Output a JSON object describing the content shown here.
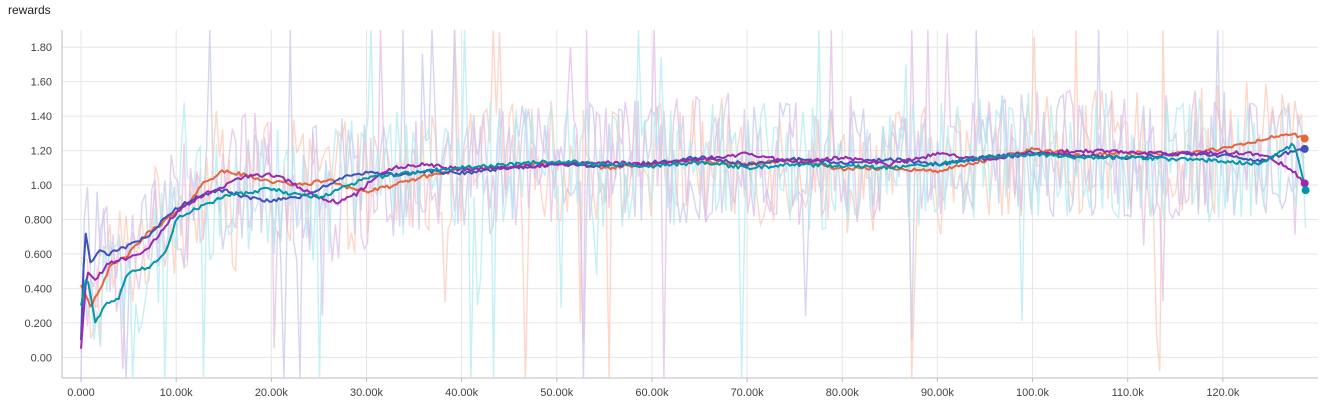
{
  "chart_data": {
    "type": "line",
    "title": "rewards",
    "xlabel": "",
    "ylabel": "",
    "xlim": [
      -2000,
      130000
    ],
    "ylim": [
      -0.12,
      1.9
    ],
    "grid": true,
    "x_ticks": [
      {
        "value": 0,
        "label": "0.000"
      },
      {
        "value": 10000,
        "label": "10.00k"
      },
      {
        "value": 20000,
        "label": "20.00k"
      },
      {
        "value": 30000,
        "label": "30.00k"
      },
      {
        "value": 40000,
        "label": "40.00k"
      },
      {
        "value": 50000,
        "label": "50.00k"
      },
      {
        "value": 60000,
        "label": "60.00k"
      },
      {
        "value": 70000,
        "label": "70.00k"
      },
      {
        "value": 80000,
        "label": "80.00k"
      },
      {
        "value": 90000,
        "label": "90.00k"
      },
      {
        "value": 100000,
        "label": "100.0k"
      },
      {
        "value": 110000,
        "label": "110.0k"
      },
      {
        "value": 120000,
        "label": "120.0k"
      }
    ],
    "y_ticks": [
      {
        "value": 0.0,
        "label": "0.00"
      },
      {
        "value": 0.2,
        "label": "0.200"
      },
      {
        "value": 0.4,
        "label": "0.400"
      },
      {
        "value": 0.6,
        "label": "0.600"
      },
      {
        "value": 0.8,
        "label": "0.800"
      },
      {
        "value": 1.0,
        "label": "1.00"
      },
      {
        "value": 1.2,
        "label": "1.20"
      },
      {
        "value": 1.4,
        "label": "1.40"
      },
      {
        "value": 1.6,
        "label": "1.60"
      },
      {
        "value": 1.8,
        "label": "1.80"
      }
    ],
    "series": [
      {
        "color": "#e8643a",
        "raw_color": "#ffc9b5",
        "x": [
          0,
          1000,
          2000,
          3000,
          5000,
          7000,
          9000,
          11000,
          13000,
          15000,
          17000,
          20000,
          23000,
          26000,
          28000,
          30000,
          33000,
          36000,
          40000,
          45000,
          50000,
          55000,
          60000,
          65000,
          70000,
          75000,
          80000,
          85000,
          90000,
          95000,
          100000,
          105000,
          110000,
          115000,
          120000,
          124000,
          127000,
          128600
        ],
        "values": [
          0.42,
          0.3,
          0.4,
          0.52,
          0.6,
          0.72,
          0.8,
          0.88,
          1.02,
          1.08,
          1.06,
          1.02,
          1.0,
          1.03,
          0.99,
          0.96,
          1.0,
          1.05,
          1.09,
          1.11,
          1.13,
          1.1,
          1.12,
          1.14,
          1.12,
          1.15,
          1.09,
          1.1,
          1.08,
          1.14,
          1.21,
          1.17,
          1.19,
          1.18,
          1.21,
          1.26,
          1.3,
          1.27
        ]
      },
      {
        "color": "#3f51b5",
        "raw_color": "#c5cae9",
        "x": [
          0,
          400,
          1000,
          2000,
          3000,
          5000,
          7000,
          9000,
          11000,
          13000,
          15000,
          18000,
          20000,
          23000,
          26000,
          28000,
          30000,
          33000,
          36000,
          40000,
          45000,
          50000,
          55000,
          60000,
          65000,
          70000,
          75000,
          80000,
          85000,
          90000,
          95000,
          100000,
          105000,
          110000,
          115000,
          120000,
          124000,
          127000,
          128600
        ],
        "values": [
          0.1,
          0.75,
          0.55,
          0.62,
          0.6,
          0.65,
          0.7,
          0.82,
          0.9,
          0.95,
          0.97,
          0.92,
          0.91,
          0.93,
          1.0,
          1.05,
          1.07,
          1.06,
          1.08,
          1.07,
          1.1,
          1.12,
          1.11,
          1.13,
          1.16,
          1.12,
          1.15,
          1.13,
          1.15,
          1.12,
          1.16,
          1.19,
          1.17,
          1.16,
          1.18,
          1.17,
          1.14,
          1.19,
          1.21
        ]
      },
      {
        "color": "#9c27b0",
        "raw_color": "#e1bee7",
        "x": [
          0,
          600,
          1500,
          3000,
          5000,
          7000,
          9000,
          11000,
          13000,
          15000,
          17000,
          20000,
          22000,
          25000,
          27000,
          29000,
          31000,
          33000,
          36000,
          40000,
          45000,
          50000,
          55000,
          60000,
          65000,
          70000,
          75000,
          80000,
          85000,
          90000,
          95000,
          100000,
          105000,
          110000,
          115000,
          120000,
          124000,
          127000,
          128600
        ],
        "values": [
          0.05,
          0.5,
          0.45,
          0.55,
          0.58,
          0.62,
          0.78,
          0.88,
          0.95,
          0.99,
          1.05,
          1.06,
          1.02,
          0.92,
          0.9,
          0.95,
          1.05,
          1.1,
          1.12,
          1.09,
          1.1,
          1.12,
          1.13,
          1.12,
          1.15,
          1.18,
          1.13,
          1.16,
          1.12,
          1.18,
          1.15,
          1.18,
          1.2,
          1.19,
          1.18,
          1.19,
          1.18,
          1.1,
          1.01
        ]
      },
      {
        "color": "#0097a7",
        "raw_color": "#b2ebf2",
        "x": [
          0,
          600,
          1500,
          2500,
          4000,
          5000,
          7000,
          9000,
          10000,
          12000,
          15000,
          18000,
          20000,
          22000,
          25000,
          27000,
          30000,
          33000,
          36000,
          40000,
          45000,
          50000,
          55000,
          60000,
          65000,
          70000,
          75000,
          80000,
          85000,
          90000,
          95000,
          100000,
          105000,
          110000,
          115000,
          120000,
          124000,
          127500,
          128700
        ],
        "values": [
          0.3,
          0.48,
          0.2,
          0.3,
          0.35,
          0.5,
          0.52,
          0.62,
          0.8,
          0.86,
          0.93,
          0.96,
          0.98,
          0.95,
          0.93,
          0.97,
          1.04,
          1.06,
          1.08,
          1.1,
          1.12,
          1.14,
          1.12,
          1.11,
          1.13,
          1.1,
          1.12,
          1.11,
          1.1,
          1.12,
          1.16,
          1.18,
          1.16,
          1.16,
          1.15,
          1.14,
          1.12,
          1.24,
          0.97
        ]
      }
    ]
  }
}
